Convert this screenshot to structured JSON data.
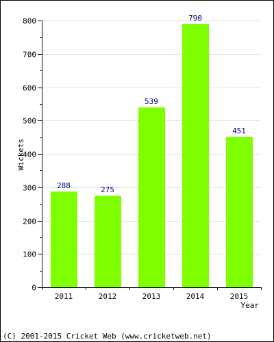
{
  "chart_data": {
    "type": "bar",
    "title": "",
    "xlabel": "Year",
    "ylabel": "Wickets",
    "categories": [
      "2011",
      "2012",
      "2013",
      "2014",
      "2015"
    ],
    "values": [
      288,
      275,
      539,
      790,
      451
    ],
    "value_labels": [
      "288",
      "275",
      "539",
      "790",
      "451"
    ],
    "ylim": [
      0,
      800
    ],
    "y_ticks": [
      "0",
      "100",
      "200",
      "300",
      "400",
      "500",
      "600",
      "700",
      "800"
    ],
    "grid": true,
    "legend": "none",
    "bar_color": "#80ff00",
    "label_color": "#000080"
  },
  "footer": {
    "copyright": "(C) 2001-2015 Cricket Web (www.cricketweb.net)"
  }
}
